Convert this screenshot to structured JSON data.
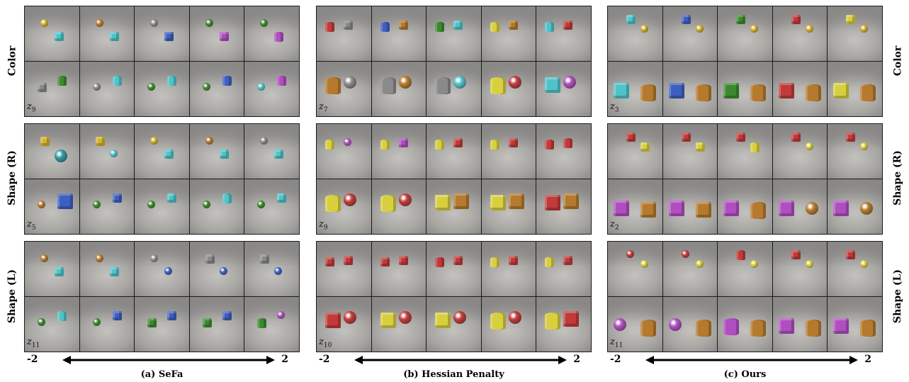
{
  "row_labels": {
    "color": "Color",
    "shape_r": "Shape (R)",
    "shape_l": "Shape (L)"
  },
  "panels": [
    {
      "caption": "(a) SeFa",
      "axis_min": "-2",
      "axis_max": "2",
      "latent_codes": [
        {
          "letter": "z",
          "sub": "9"
        },
        {
          "letter": "z",
          "sub": "5"
        },
        {
          "letter": "z",
          "sub": "11"
        }
      ]
    },
    {
      "caption": "(b) Hessian Penalty",
      "axis_min": "-2",
      "axis_max": "2",
      "latent_codes": [
        {
          "letter": "z",
          "sub": "7"
        },
        {
          "letter": "z",
          "sub": "9"
        },
        {
          "letter": "z",
          "sub": "10"
        }
      ]
    },
    {
      "caption": "(c) Ours",
      "axis_min": "-2",
      "axis_max": "2",
      "latent_codes": [
        {
          "letter": "z",
          "sub": "3"
        },
        {
          "letter": "z",
          "sub": "2"
        },
        {
          "letter": "z",
          "sub": "11"
        }
      ]
    }
  ],
  "object_colors": {
    "gold": "#d4b22a",
    "cyan": "#4fc3c8",
    "purple": "#b04ec0",
    "gray": "#8a8a8a",
    "green": "#3d8a2e",
    "blue": "#3d5fc0",
    "red": "#c23a3a",
    "brown": "#b57a2e",
    "yellow": "#d8cf3f",
    "darkcyan": "#2f9aa0"
  }
}
